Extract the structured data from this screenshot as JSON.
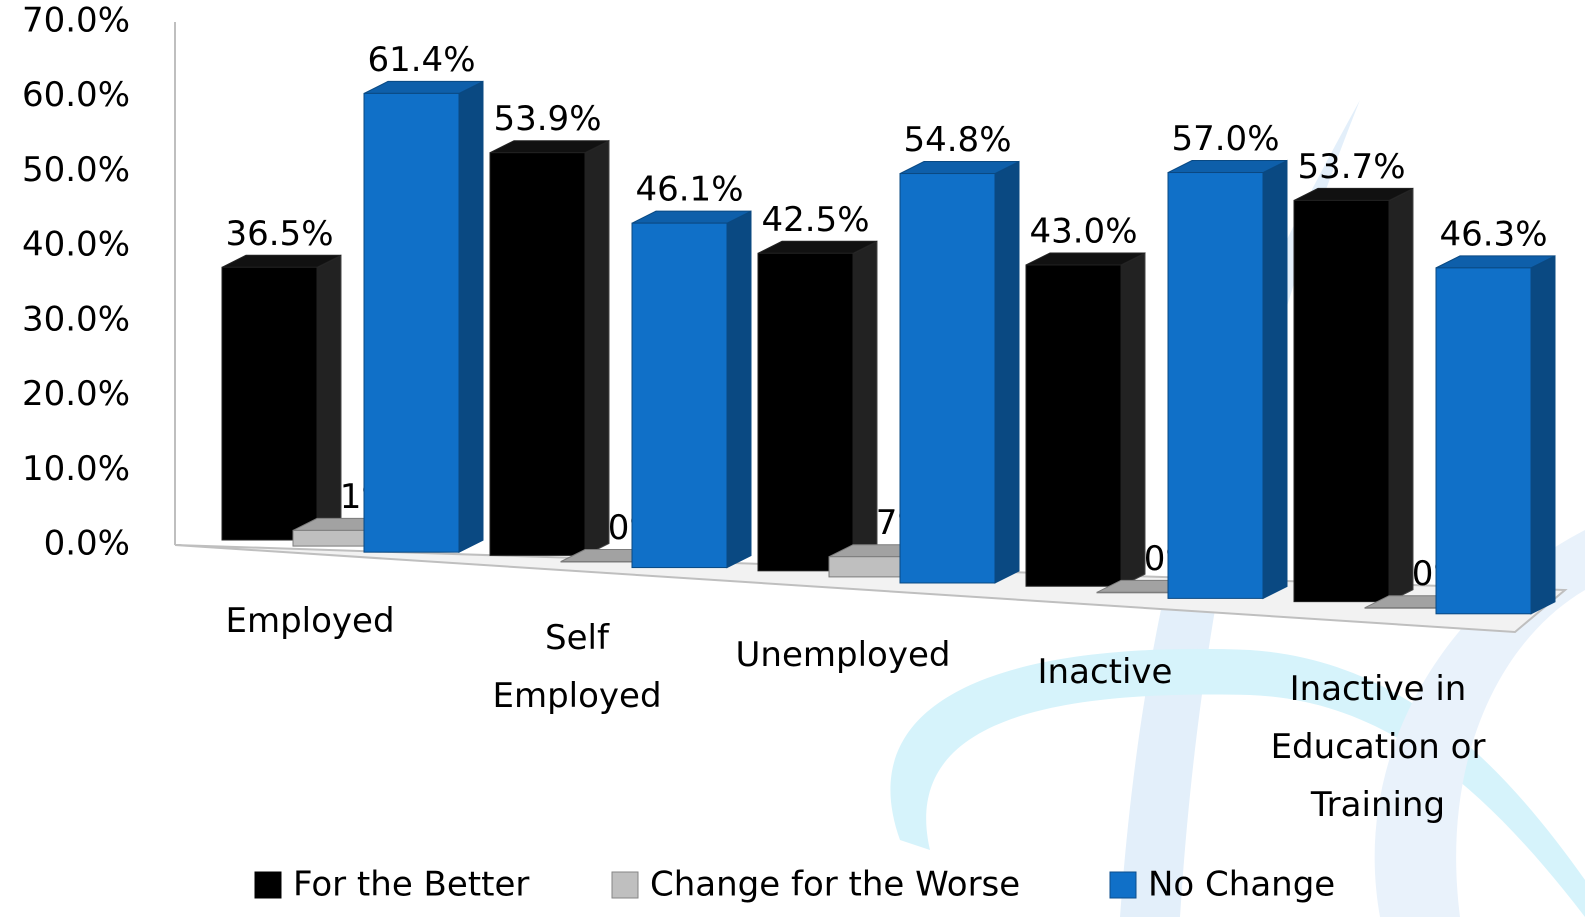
{
  "chart_data": {
    "type": "bar3d",
    "categories": [
      "Employed",
      "Self Employed",
      "Unemployed",
      "Inactive",
      "Inactive in Education or Training"
    ],
    "series": [
      {
        "name": "For the Better",
        "color": "#000000",
        "values": [
          36.5,
          53.9,
          42.5,
          43.0,
          53.7
        ],
        "value_labels": [
          "36.5%",
          "53.9%",
          "42.5%",
          "43.0%",
          "53.7%"
        ]
      },
      {
        "name": "Change for the Worse",
        "color": "#bfbfbf",
        "values": [
          2.1,
          0.0,
          2.7,
          0.0,
          0.0
        ],
        "value_labels": [
          "2.1%",
          "0.0%",
          "2.7%",
          "0.0%",
          "0.0%"
        ]
      },
      {
        "name": "No Change",
        "color": "#1070c8",
        "values": [
          61.4,
          46.1,
          54.8,
          57.0,
          46.3
        ],
        "value_labels": [
          "61.4%",
          "46.1%",
          "54.8%",
          "57.0%",
          "46.3%"
        ]
      }
    ],
    "ylim": [
      0,
      70
    ],
    "yticks": [
      {
        "value": 0,
        "label": "0.0%"
      },
      {
        "value": 10,
        "label": "10.0%"
      },
      {
        "value": 20,
        "label": "20.0%"
      },
      {
        "value": 30,
        "label": "30.0%"
      },
      {
        "value": 40,
        "label": "40.0%"
      },
      {
        "value": 50,
        "label": "50.0%"
      },
      {
        "value": 60,
        "label": "60.0%"
      },
      {
        "value": 70,
        "label": "70.0%"
      }
    ],
    "legend": "bottom"
  }
}
